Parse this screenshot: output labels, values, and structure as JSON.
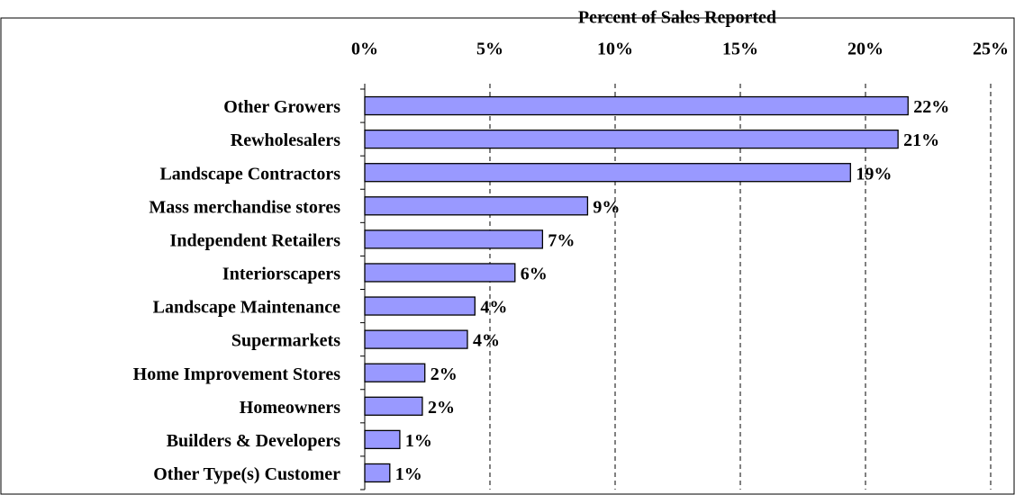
{
  "chart_data": {
    "type": "barh",
    "x_label": "Percent of Sales Reported",
    "categories": [
      "Other Growers",
      "Rewholesalers",
      "Landscape Contractors",
      "Mass merchandise stores",
      "Independent Retailers",
      "Interiorscapers",
      "Landscape Maintenance",
      "Supermarkets",
      "Home Improvement Stores",
      "Homeowners",
      "Builders & Developers",
      "Other Type(s) Customer"
    ],
    "values": [
      21.7,
      21.3,
      19.4,
      8.9,
      7.1,
      6.0,
      4.4,
      4.1,
      2.4,
      2.3,
      1.4,
      1.0
    ],
    "value_labels": [
      "22%",
      "21%",
      "19%",
      "9%",
      "7%",
      "6%",
      "4%",
      "4%",
      "2%",
      "2%",
      "1%",
      "1%"
    ],
    "color": "#9999ff",
    "xlim": [
      0,
      25
    ],
    "xticks": [
      {
        "value": 0,
        "label": "0%"
      },
      {
        "value": 5,
        "label": "5%"
      },
      {
        "value": 10,
        "label": "10%"
      },
      {
        "value": 15,
        "label": "15%"
      },
      {
        "value": 20,
        "label": "20%"
      },
      {
        "value": 25,
        "label": "25%"
      }
    ],
    "grid": true
  }
}
